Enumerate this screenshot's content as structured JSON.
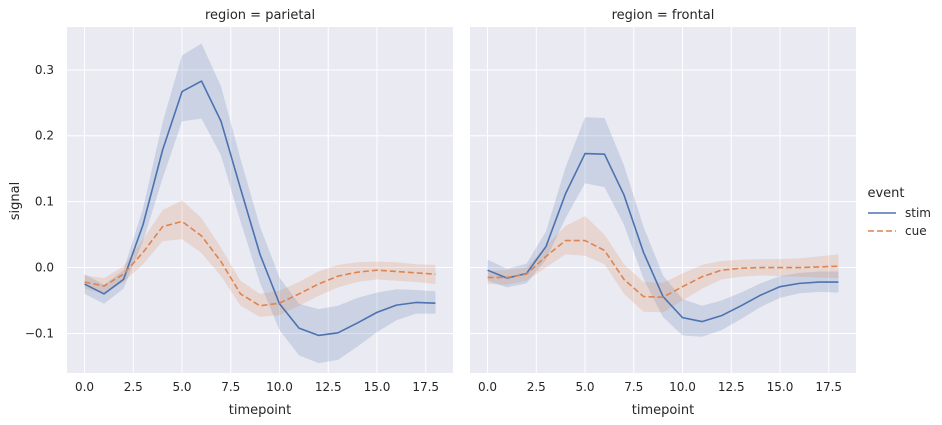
{
  "chart_data": {
    "type": "line",
    "xlabel": "timepoint",
    "ylabel": "signal",
    "xlim": [
      -0.9,
      18.9
    ],
    "ylim": [
      -0.16,
      0.365
    ],
    "xticks": [
      "0.0",
      "2.5",
      "5.0",
      "7.5",
      "10.0",
      "12.5",
      "15.0",
      "17.5"
    ],
    "yticks": [
      "−0.1",
      "0.0",
      "0.1",
      "0.2",
      "0.3"
    ],
    "grid": true,
    "legend": {
      "title": "event",
      "placement": "right",
      "entries": [
        {
          "label": "stim",
          "color": "#4c72b0",
          "dash": "solid"
        },
        {
          "label": "cue",
          "color": "#dd8452",
          "dash": "dashed"
        }
      ]
    },
    "x": [
      0,
      1,
      2,
      3,
      4,
      5,
      6,
      7,
      8,
      9,
      10,
      11,
      12,
      13,
      14,
      15,
      16,
      17,
      18
    ],
    "panels": [
      {
        "title": "region = parietal",
        "series": [
          {
            "name": "stim",
            "color": "#4c72b0",
            "values": [
              -0.025,
              -0.04,
              -0.018,
              0.065,
              0.178,
              0.267,
              0.283,
              0.222,
              0.12,
              0.02,
              -0.055,
              -0.092,
              -0.103,
              -0.099,
              -0.084,
              -0.068,
              -0.057,
              -0.053,
              -0.054
            ],
            "lower": [
              -0.04,
              -0.055,
              -0.032,
              0.04,
              0.135,
              0.222,
              0.226,
              0.17,
              0.07,
              -0.023,
              -0.095,
              -0.133,
              -0.145,
              -0.14,
              -0.12,
              -0.098,
              -0.08,
              -0.07,
              -0.07
            ],
            "upper": [
              -0.01,
              -0.026,
              -0.004,
              0.09,
              0.22,
              0.322,
              0.34,
              0.275,
              0.165,
              0.062,
              -0.015,
              -0.055,
              -0.063,
              -0.058,
              -0.046,
              -0.038,
              -0.033,
              -0.034,
              -0.036
            ]
          },
          {
            "name": "cue",
            "color": "#dd8452",
            "values": [
              -0.022,
              -0.028,
              -0.01,
              0.023,
              0.062,
              0.07,
              0.048,
              0.009,
              -0.04,
              -0.058,
              -0.054,
              -0.04,
              -0.025,
              -0.013,
              -0.007,
              -0.004,
              -0.006,
              -0.008,
              -0.01
            ],
            "lower": [
              -0.032,
              -0.04,
              -0.022,
              0.005,
              0.04,
              0.043,
              0.022,
              -0.013,
              -0.058,
              -0.075,
              -0.072,
              -0.058,
              -0.043,
              -0.03,
              -0.022,
              -0.018,
              -0.02,
              -0.022,
              -0.025
            ],
            "upper": [
              -0.012,
              -0.016,
              0.002,
              0.043,
              0.087,
              0.102,
              0.075,
              0.03,
              -0.02,
              -0.04,
              -0.035,
              -0.022,
              -0.006,
              0.004,
              0.008,
              0.009,
              0.008,
              0.005,
              0.004
            ]
          }
        ]
      },
      {
        "title": "region = frontal",
        "series": [
          {
            "name": "stim",
            "color": "#4c72b0",
            "values": [
              -0.004,
              -0.016,
              -0.009,
              0.032,
              0.112,
              0.173,
              0.172,
              0.11,
              0.023,
              -0.044,
              -0.076,
              -0.082,
              -0.073,
              -0.058,
              -0.042,
              -0.029,
              -0.024,
              -0.022,
              -0.022
            ],
            "lower": [
              -0.02,
              -0.03,
              -0.024,
              0.012,
              0.075,
              0.128,
              0.122,
              0.065,
              -0.017,
              -0.075,
              -0.103,
              -0.105,
              -0.095,
              -0.078,
              -0.06,
              -0.046,
              -0.039,
              -0.037,
              -0.038
            ],
            "upper": [
              0.012,
              -0.002,
              0.006,
              0.055,
              0.152,
              0.228,
              0.227,
              0.155,
              0.062,
              -0.012,
              -0.048,
              -0.058,
              -0.05,
              -0.038,
              -0.024,
              -0.013,
              -0.008,
              -0.006,
              -0.006
            ]
          },
          {
            "name": "cue",
            "color": "#dd8452",
            "values": [
              -0.015,
              -0.015,
              -0.01,
              0.017,
              0.041,
              0.041,
              0.026,
              -0.018,
              -0.044,
              -0.045,
              -0.029,
              -0.014,
              -0.004,
              -0.001,
              0.0,
              0.0,
              0.0,
              0.001,
              0.002
            ],
            "lower": [
              -0.025,
              -0.026,
              -0.02,
              0.0,
              0.02,
              0.018,
              0.005,
              -0.04,
              -0.067,
              -0.068,
              -0.05,
              -0.032,
              -0.018,
              -0.014,
              -0.012,
              -0.013,
              -0.014,
              -0.015,
              -0.016
            ],
            "upper": [
              -0.005,
              -0.004,
              0.0,
              0.033,
              0.063,
              0.078,
              0.05,
              0.005,
              -0.022,
              -0.023,
              -0.009,
              0.004,
              0.01,
              0.012,
              0.013,
              0.013,
              0.014,
              0.017,
              0.02
            ]
          }
        ]
      }
    ]
  }
}
